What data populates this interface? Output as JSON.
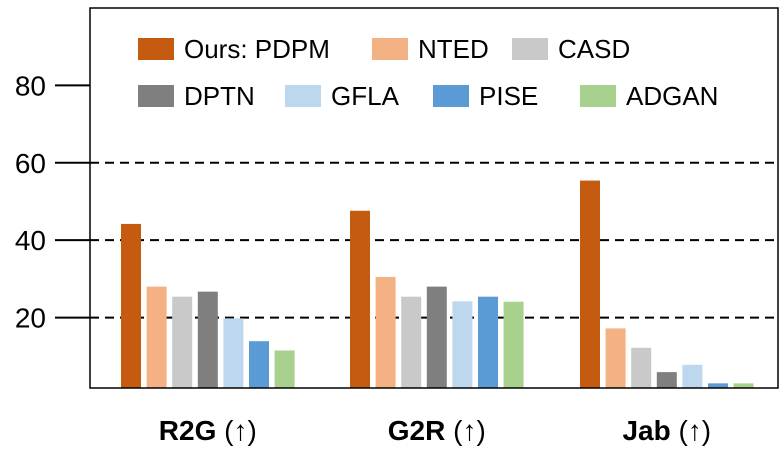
{
  "chart_data": {
    "type": "bar",
    "categories": [
      {
        "name": "R2G",
        "arrow": " (↑)"
      },
      {
        "name": "G2R",
        "arrow": " (↑)"
      },
      {
        "name": "Jab",
        "arrow": " (↑)"
      }
    ],
    "series": [
      {
        "name": "Ours: PDPM",
        "color": "#c55a11",
        "values": [
          44.2,
          47.6,
          55.4
        ]
      },
      {
        "name": "NTED",
        "color": "#f4b183",
        "values": [
          28.0,
          30.5,
          17.2
        ]
      },
      {
        "name": "CASD",
        "color": "#c9c9c9",
        "values": [
          25.4,
          25.4,
          12.2
        ]
      },
      {
        "name": "DPTN",
        "color": "#7f7f7f",
        "values": [
          26.7,
          28.0,
          5.9
        ]
      },
      {
        "name": "GFLA",
        "color": "#bdd7ee",
        "values": [
          19.8,
          24.2,
          7.8
        ]
      },
      {
        "name": "PISE",
        "color": "#5b9bd5",
        "values": [
          13.9,
          25.4,
          3.0
        ]
      },
      {
        "name": "ADGAN",
        "color": "#a9d18e",
        "values": [
          11.5,
          24.1,
          3.0
        ]
      }
    ],
    "yticks": [
      20,
      40,
      60,
      80
    ],
    "ylim": [
      1.8,
      100
    ],
    "grid": {
      "dashed_at": [
        20,
        40,
        60
      ]
    },
    "legend": {
      "placement": "top",
      "columns": 3
    }
  }
}
